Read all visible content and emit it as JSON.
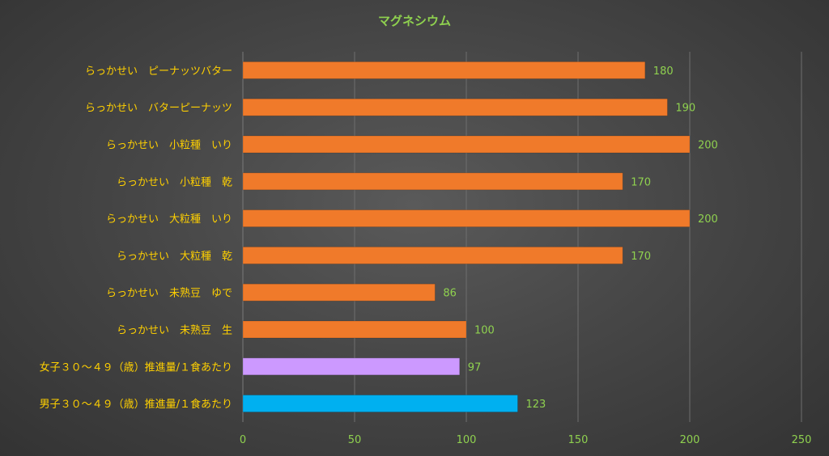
{
  "chart_data": {
    "type": "bar",
    "orientation": "horizontal",
    "title": "マグネシウム",
    "categories": [
      "らっかせい　ピーナッツバター",
      "らっかせい　バターピーナッツ",
      "らっかせい　小粒種　いり",
      "らっかせい　小粒種　乾",
      "らっかせい　大粒種　いり",
      "らっかせい　大粒種　乾",
      "らっかせい　未熟豆　ゆで",
      "らっかせい　未熟豆　生",
      "女子３０～４９（歳）推進量/１食あたり",
      "男子３０～４９（歳）推進量/１食あたり"
    ],
    "values": [
      180,
      190,
      200,
      170,
      200,
      170,
      86,
      100,
      97,
      123
    ],
    "bar_colors": [
      "#f07a2a",
      "#f07a2a",
      "#f07a2a",
      "#f07a2a",
      "#f07a2a",
      "#f07a2a",
      "#f07a2a",
      "#f07a2a",
      "#cc99ff",
      "#00b0f0"
    ],
    "xlim": [
      0,
      250
    ],
    "xticks": [
      0,
      50,
      100,
      150,
      200,
      250
    ],
    "grid": true,
    "data_labels": true
  }
}
